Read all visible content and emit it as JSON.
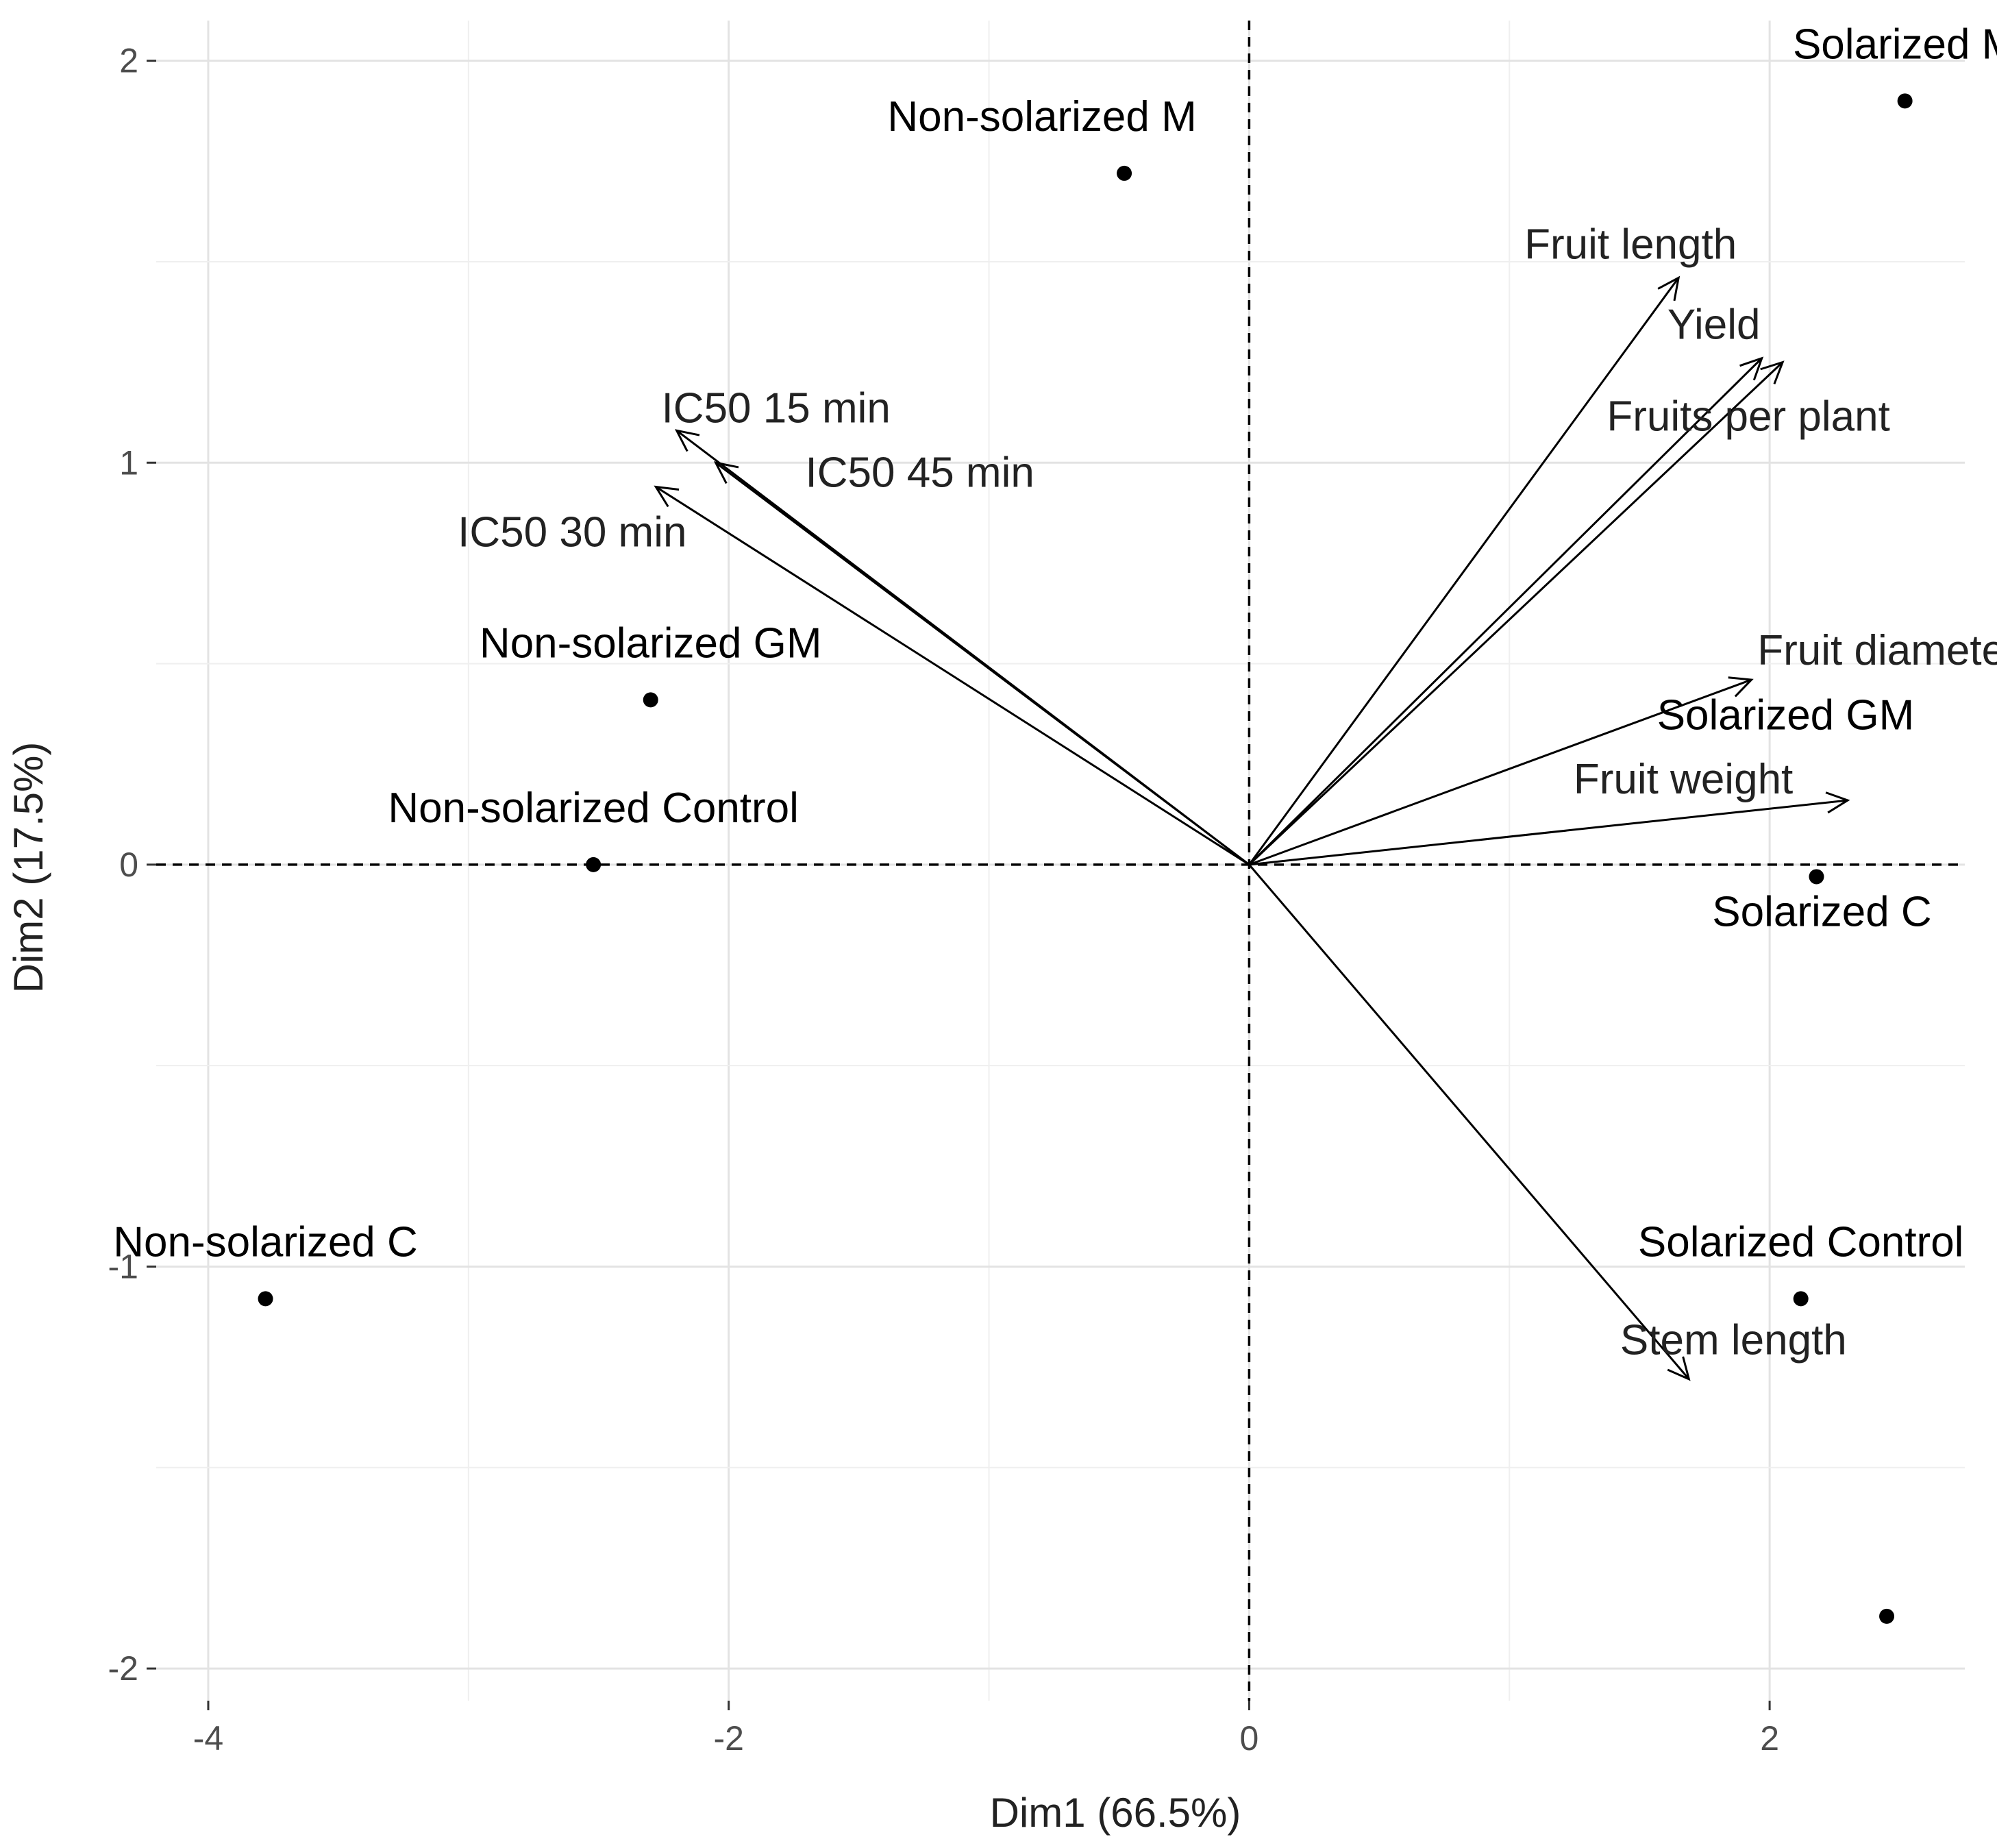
{
  "chart_data": {
    "type": "scatter",
    "subtype": "pca-biplot",
    "title": "",
    "xlabel": "Dim1 (66.5%)",
    "ylabel": "Dim2 (17.5%)",
    "xlim": [
      -4.2,
      2.75
    ],
    "ylim": [
      -2.08,
      2.1
    ],
    "xticks": [
      -4,
      -2,
      0,
      2
    ],
    "xtick_labels": [
      "-4",
      "-2",
      "0",
      "2"
    ],
    "yticks": [
      -2,
      -1,
      0,
      1,
      2
    ],
    "ytick_labels": [
      "-2",
      "-1",
      "0",
      "1",
      "2"
    ],
    "grid": true,
    "reference_lines": {
      "x": 0,
      "y": 0,
      "style": "dashed"
    },
    "individuals": [
      {
        "name": "Solarized M",
        "x": 2.52,
        "y": 1.9,
        "label_anchor": "above"
      },
      {
        "name": "Non-solarized M",
        "x": -0.48,
        "y": 1.72,
        "label_anchor": "above-left"
      },
      {
        "name": "Non-solarized GM",
        "x": -2.3,
        "y": 0.41,
        "label_anchor": "above"
      },
      {
        "name": "Non-solarized Control",
        "x": -2.52,
        "y": 0.0,
        "label_anchor": "above"
      },
      {
        "name": "Solarized GM",
        "x": 2.18,
        "y": -0.03,
        "label_anchor": "far-above"
      },
      {
        "name": "Solarized C",
        "x": 2.18,
        "y": -0.03,
        "label_anchor": "below"
      },
      {
        "name": "Solarized Control",
        "x": 2.12,
        "y": -1.08,
        "label_anchor": "above"
      },
      {
        "name": "Non-solarized C",
        "x": -3.78,
        "y": -1.08,
        "label_anchor": "above"
      },
      {
        "name": "",
        "x": 2.45,
        "y": -1.87,
        "label_anchor": "none"
      }
    ],
    "variables": [
      {
        "name": "Fruit length",
        "x": 1.65,
        "y": 1.46
      },
      {
        "name": "Yield",
        "x": 1.97,
        "y": 1.26
      },
      {
        "name": "Fruits per plant",
        "x": 2.05,
        "y": 1.25
      },
      {
        "name": "Fruit diameter",
        "x": 1.93,
        "y": 0.46
      },
      {
        "name": "Fruit weight",
        "x": 2.3,
        "y": 0.16
      },
      {
        "name": "Stem length",
        "x": 1.69,
        "y": -1.28
      },
      {
        "name": "IC50 15 min",
        "x": -2.2,
        "y": 1.08
      },
      {
        "name": "IC50 45 min",
        "x": -2.05,
        "y": 1.0
      },
      {
        "name": "IC50 30 min",
        "x": -2.28,
        "y": 0.94
      }
    ]
  }
}
